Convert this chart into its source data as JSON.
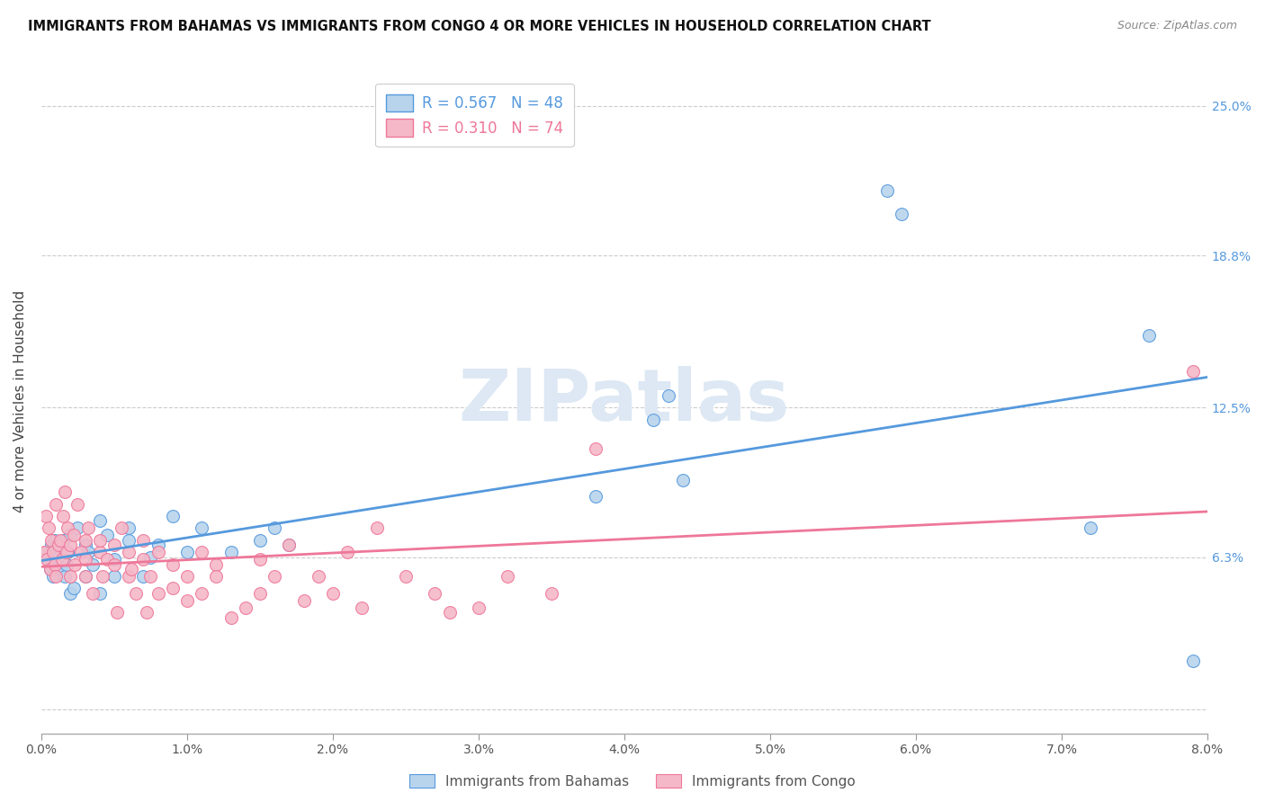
{
  "title": "IMMIGRANTS FROM BAHAMAS VS IMMIGRANTS FROM CONGO 4 OR MORE VEHICLES IN HOUSEHOLD CORRELATION CHART",
  "source": "Source: ZipAtlas.com",
  "ylabel": "4 or more Vehicles in Household",
  "xlim": [
    0.0,
    0.08
  ],
  "ylim": [
    -0.01,
    0.265
  ],
  "xticks": [
    0.0,
    0.01,
    0.02,
    0.03,
    0.04,
    0.05,
    0.06,
    0.07,
    0.08
  ],
  "xticklabels": [
    "0.0%",
    "1.0%",
    "2.0%",
    "3.0%",
    "4.0%",
    "5.0%",
    "6.0%",
    "7.0%",
    "8.0%"
  ],
  "yticks": [
    0.0,
    0.063,
    0.125,
    0.188,
    0.25
  ],
  "yticklabels": [
    "",
    "6.3%",
    "12.5%",
    "18.8%",
    "25.0%"
  ],
  "bahamas_color": "#b8d4ed",
  "congo_color": "#f5b8c8",
  "bahamas_line_color": "#5599dd",
  "congo_line_color": "#ee7799",
  "bahamas_R": 0.567,
  "bahamas_N": 48,
  "congo_R": 0.31,
  "congo_N": 74,
  "legend_label_bahamas": "Immigrants from Bahamas",
  "legend_label_congo": "Immigrants from Congo",
  "watermark": "ZIPatlas",
  "bahamas_x": [
    0.0003,
    0.0005,
    0.0006,
    0.0007,
    0.0008,
    0.0009,
    0.001,
    0.001,
    0.0012,
    0.0013,
    0.0015,
    0.0016,
    0.0017,
    0.0018,
    0.002,
    0.002,
    0.0022,
    0.0025,
    0.003,
    0.003,
    0.0032,
    0.0035,
    0.004,
    0.004,
    0.0045,
    0.005,
    0.005,
    0.006,
    0.006,
    0.007,
    0.0075,
    0.008,
    0.009,
    0.01,
    0.011,
    0.013,
    0.015,
    0.016,
    0.017,
    0.038,
    0.042,
    0.043,
    0.044,
    0.058,
    0.059,
    0.072,
    0.076,
    0.079
  ],
  "bahamas_y": [
    0.065,
    0.062,
    0.058,
    0.068,
    0.055,
    0.07,
    0.06,
    0.065,
    0.063,
    0.058,
    0.07,
    0.055,
    0.06,
    0.065,
    0.048,
    0.072,
    0.05,
    0.075,
    0.055,
    0.068,
    0.065,
    0.06,
    0.048,
    0.078,
    0.072,
    0.062,
    0.055,
    0.07,
    0.075,
    0.055,
    0.063,
    0.068,
    0.08,
    0.065,
    0.075,
    0.065,
    0.07,
    0.075,
    0.068,
    0.088,
    0.12,
    0.13,
    0.095,
    0.215,
    0.205,
    0.075,
    0.155,
    0.02
  ],
  "congo_x": [
    0.0002,
    0.0003,
    0.0004,
    0.0005,
    0.0006,
    0.0007,
    0.0008,
    0.0009,
    0.001,
    0.001,
    0.0012,
    0.0013,
    0.0014,
    0.0015,
    0.0016,
    0.0017,
    0.0018,
    0.002,
    0.002,
    0.0022,
    0.0023,
    0.0025,
    0.0027,
    0.003,
    0.003,
    0.003,
    0.0032,
    0.0035,
    0.004,
    0.004,
    0.0042,
    0.0045,
    0.005,
    0.005,
    0.0052,
    0.0055,
    0.006,
    0.006,
    0.0062,
    0.0065,
    0.007,
    0.007,
    0.0072,
    0.0075,
    0.008,
    0.008,
    0.009,
    0.009,
    0.01,
    0.01,
    0.011,
    0.011,
    0.012,
    0.012,
    0.013,
    0.014,
    0.015,
    0.015,
    0.016,
    0.017,
    0.018,
    0.019,
    0.02,
    0.021,
    0.022,
    0.023,
    0.025,
    0.027,
    0.028,
    0.03,
    0.032,
    0.035,
    0.038,
    0.079
  ],
  "congo_y": [
    0.065,
    0.08,
    0.062,
    0.075,
    0.058,
    0.07,
    0.065,
    0.06,
    0.055,
    0.085,
    0.068,
    0.07,
    0.062,
    0.08,
    0.09,
    0.065,
    0.075,
    0.055,
    0.068,
    0.072,
    0.06,
    0.085,
    0.065,
    0.055,
    0.07,
    0.062,
    0.075,
    0.048,
    0.065,
    0.07,
    0.055,
    0.062,
    0.06,
    0.068,
    0.04,
    0.075,
    0.055,
    0.065,
    0.058,
    0.048,
    0.062,
    0.07,
    0.04,
    0.055,
    0.048,
    0.065,
    0.05,
    0.06,
    0.055,
    0.045,
    0.065,
    0.048,
    0.06,
    0.055,
    0.038,
    0.042,
    0.062,
    0.048,
    0.055,
    0.068,
    0.045,
    0.055,
    0.048,
    0.065,
    0.042,
    0.075,
    0.055,
    0.048,
    0.04,
    0.042,
    0.055,
    0.048,
    0.108,
    0.14
  ]
}
